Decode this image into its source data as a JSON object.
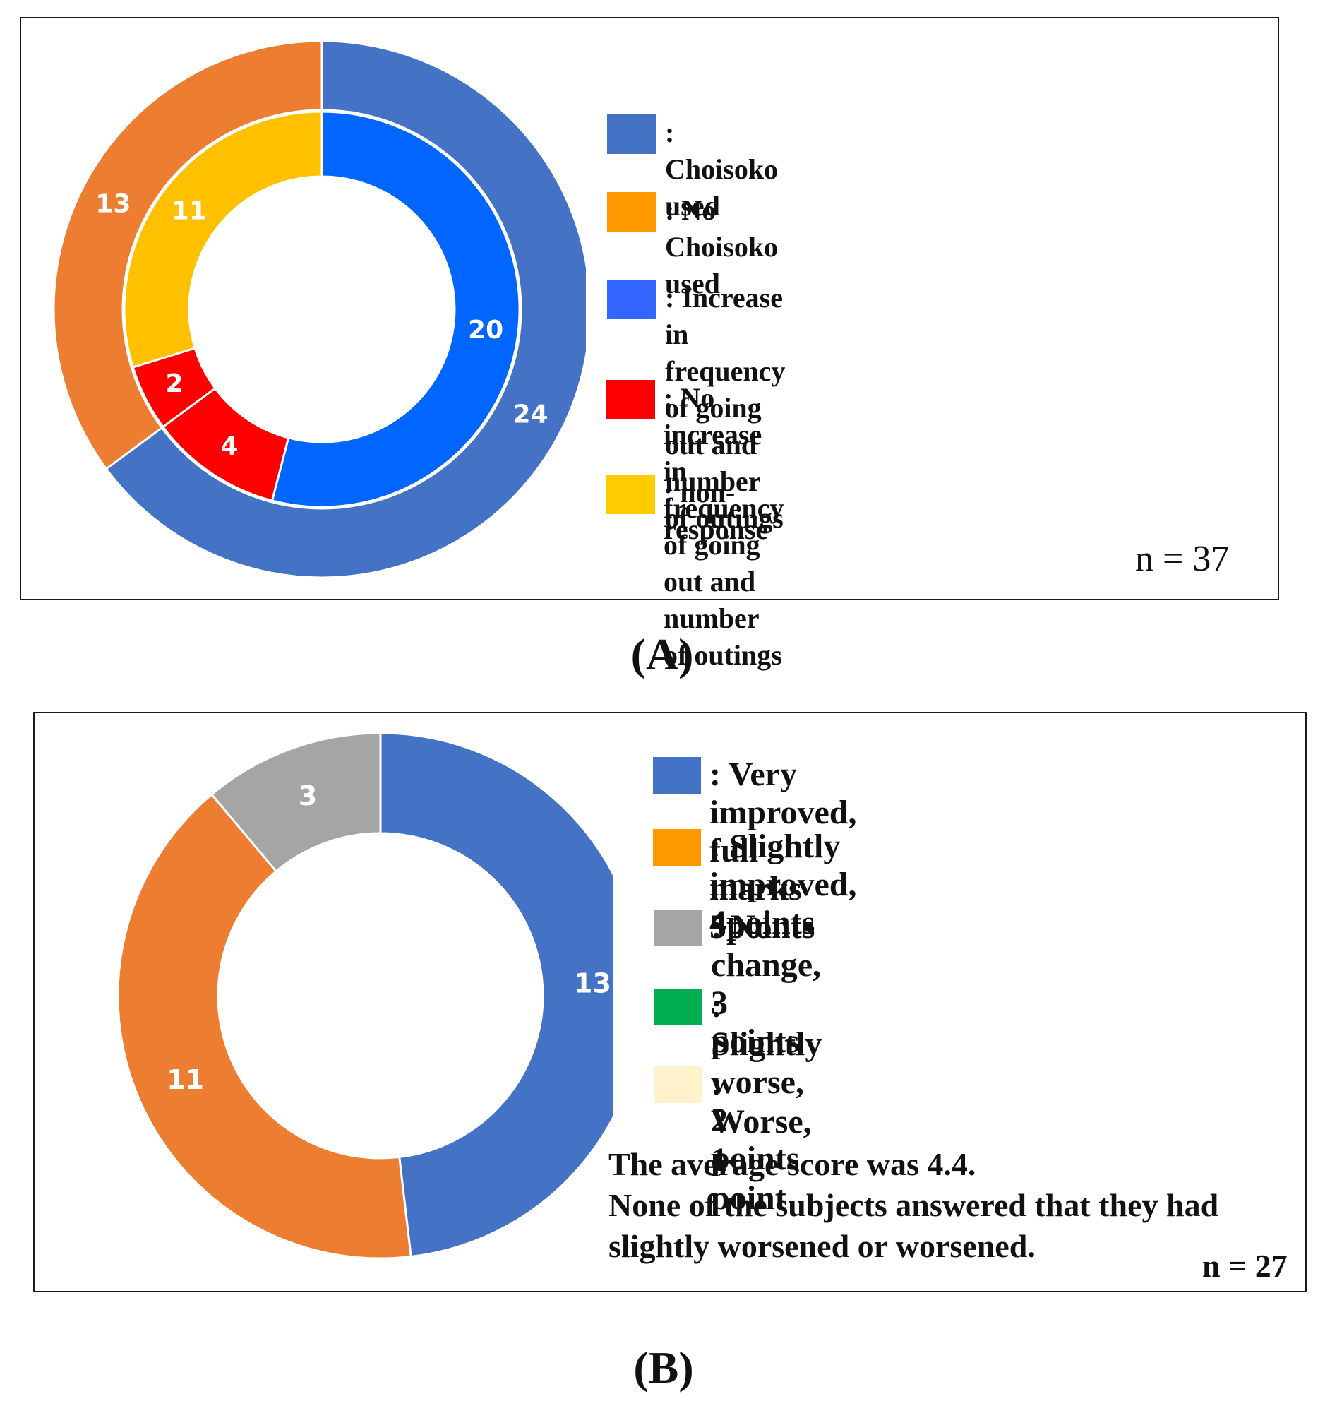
{
  "figure_labels": {
    "a": "(A)",
    "b": "(B)"
  },
  "chart_data": [
    {
      "type": "pie",
      "subtype": "nested-donut",
      "n_label": "n = 37",
      "colors": {
        "choisoko_used": "#4472C4",
        "no_choisoko_used": "#ED7D31",
        "increase": "#0066FF",
        "no_increase": "#FF0000",
        "non_response": "#FFC000"
      },
      "legend": [
        {
          "key": "choisoko_used",
          "label": ": Choisoko used",
          "color": "#4472C4"
        },
        {
          "key": "no_choisoko_used",
          "label": ": No Choisoko used",
          "color": "#FF9900"
        },
        {
          "key": "increase",
          "label": ": Increase in frequency of going out and\n number of outings",
          "color": "#3366FF"
        },
        {
          "key": "no_increase",
          "label": ": No increase in frequency of going out and\n number of outings",
          "color": "#FF0000"
        },
        {
          "key": "non_response",
          "label": ": non-response",
          "color": "#FFCC00"
        }
      ],
      "outer_ring": [
        {
          "label": "Choisoko used",
          "value": 24,
          "color": "#4472C4"
        },
        {
          "label": "No Choisoko used",
          "value": 13,
          "color": "#ED7D31"
        }
      ],
      "inner_ring": [
        {
          "label": "Increase in frequency of going out and number of outings",
          "value": 20,
          "color": "#0066FF"
        },
        {
          "label": "No increase in frequency of going out and number of outings",
          "value": 4,
          "color": "#FF0000"
        },
        {
          "label": "No increase in frequency of going out and number of outings",
          "value": 2,
          "color": "#FF0000"
        },
        {
          "label": "non-response",
          "value": 11,
          "color": "#FFC000"
        }
      ]
    },
    {
      "type": "pie",
      "subtype": "donut",
      "n_label": "n = 27",
      "legend": [
        {
          "label": ": Very improved, full marks 5points",
          "color": "#4472C4"
        },
        {
          "label": ": Slightly improved, 4points",
          "color": "#FF9900"
        },
        {
          "label": ": No change, 3 points",
          "color": "#A5A5A5"
        },
        {
          "label": ": Slightly worse, 2 points",
          "color": "#00B050"
        },
        {
          "label": ": Worse, 1 point",
          "color": "#FFF2CC"
        }
      ],
      "slices": [
        {
          "label": "Very improved, full marks 5points",
          "value": 13,
          "color": "#4472C4"
        },
        {
          "label": "Slightly improved, 4points",
          "value": 11,
          "color": "#ED7D31"
        },
        {
          "label": "No change, 3 points",
          "value": 3,
          "color": "#A5A5A5"
        }
      ],
      "note": "The average score was 4.4.\nNone of the subjects answered that they had\nslightly worsened or worsened."
    }
  ]
}
